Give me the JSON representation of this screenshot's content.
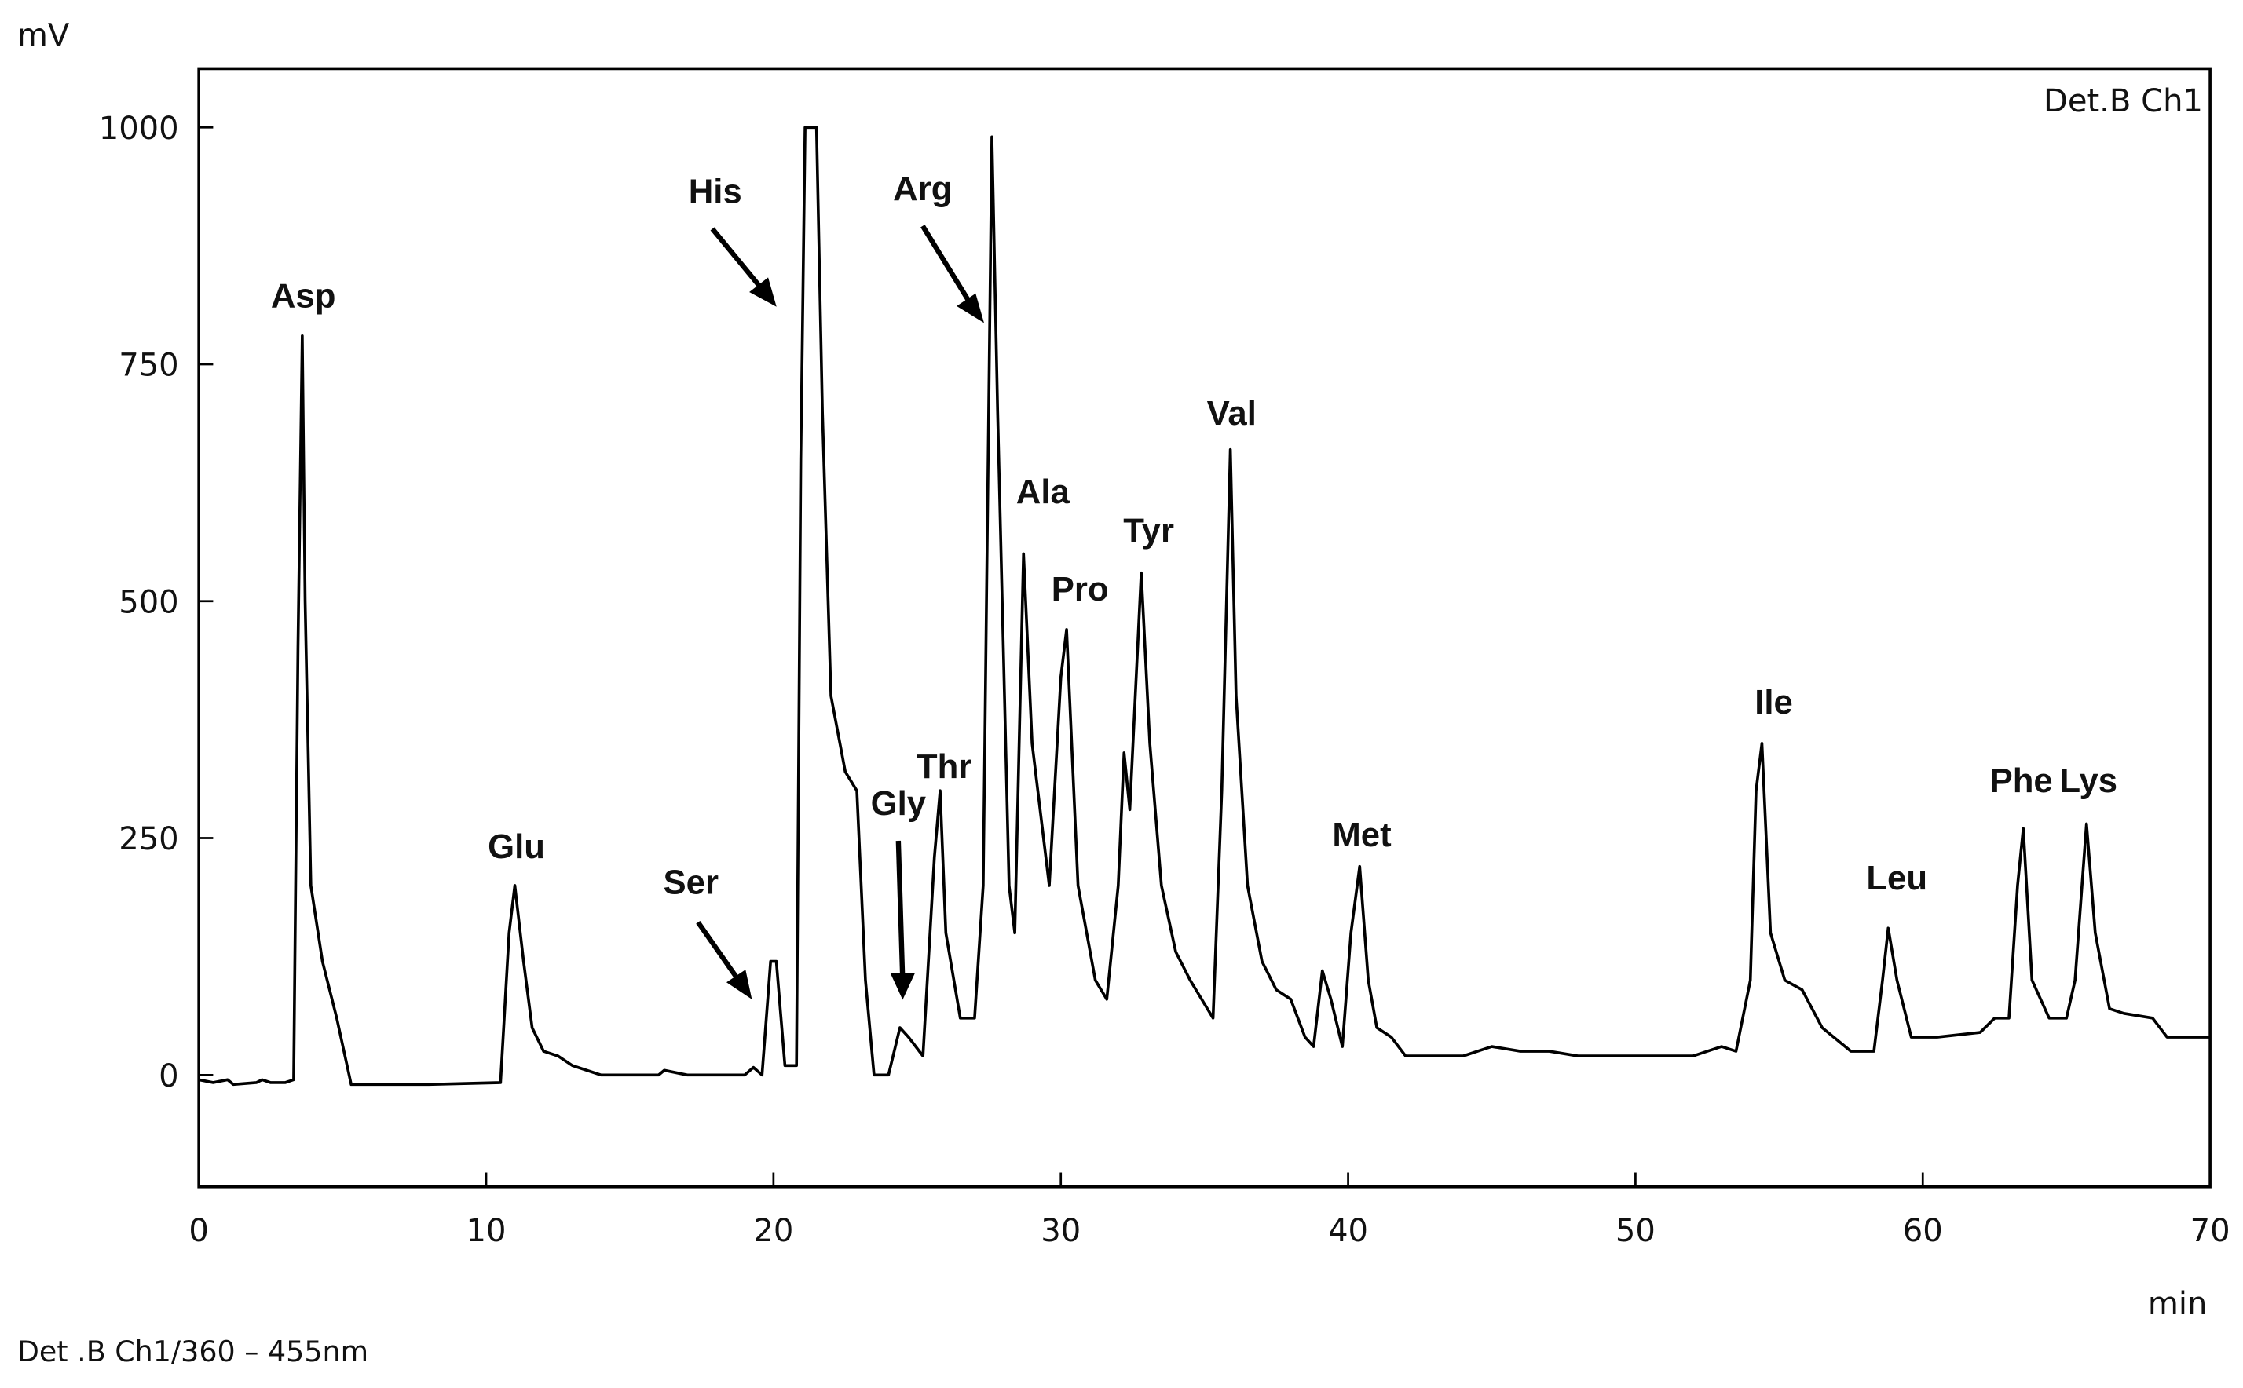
{
  "chart_data": {
    "type": "line",
    "ylabel": "mV",
    "xlabel": "min",
    "detector": "Det.B Ch1",
    "footer": "Det .B Ch1/360 – 455nm",
    "xlim": [
      0,
      70
    ],
    "ylim": [
      -118,
      1062
    ],
    "xticks": [
      0,
      10,
      20,
      30,
      40,
      50,
      60,
      70
    ],
    "yticks": [
      0,
      250,
      500,
      750,
      1000
    ],
    "color": "#000000",
    "x": [
      0,
      0.5,
      1,
      1.2,
      2,
      2.2,
      2.5,
      3,
      3.3,
      3.45,
      3.6,
      3.7,
      3.9,
      4.3,
      4.8,
      5.3,
      6,
      8,
      10.5,
      10.8,
      11,
      11.3,
      11.6,
      12,
      12.5,
      13,
      14,
      16,
      16.2,
      17,
      19,
      19.3,
      19.6,
      19.9,
      20.1,
      20.4,
      20.8,
      20.95,
      21.1,
      21.5,
      21.7,
      22,
      22.5,
      22.9,
      23.2,
      23.5,
      24,
      24.4,
      24.7,
      25.2,
      25.6,
      25.8,
      26,
      26.5,
      27,
      27.3,
      27.6,
      27.8,
      28.2,
      28.4,
      28.7,
      29,
      29.6,
      30,
      30.2,
      30.6,
      31.2,
      31.6,
      32,
      32.2,
      32.4,
      32.8,
      33.1,
      33.5,
      34,
      34.5,
      35.3,
      35.6,
      35.9,
      36.1,
      36.5,
      37,
      37.5,
      38,
      38.5,
      38.8,
      39.1,
      39.4,
      39.8,
      40.1,
      40.4,
      40.7,
      41,
      41.5,
      42,
      43,
      44,
      45,
      46,
      47,
      48,
      50,
      52,
      53,
      53.5,
      54,
      54.2,
      54.4,
      54.7,
      55.2,
      55.8,
      56.5,
      57.5,
      58.3,
      58.6,
      58.8,
      59.1,
      59.6,
      60.5,
      62,
      62.5,
      63,
      63.3,
      63.5,
      63.8,
      64.4,
      65,
      65.3,
      65.7,
      66,
      66.5,
      67,
      68,
      68.5,
      70
    ],
    "values": [
      -5,
      -8,
      -5,
      -10,
      -8,
      -5,
      -8,
      -8,
      -5,
      450,
      780,
      500,
      200,
      120,
      60,
      -10,
      -10,
      -10,
      -8,
      150,
      200,
      120,
      50,
      25,
      20,
      10,
      0,
      0,
      5,
      0,
      0,
      8,
      0,
      120,
      120,
      10,
      10,
      650,
      1000,
      1000,
      700,
      400,
      320,
      300,
      100,
      0,
      0,
      50,
      40,
      20,
      230,
      300,
      150,
      60,
      60,
      200,
      990,
      700,
      200,
      150,
      550,
      350,
      200,
      420,
      470,
      200,
      100,
      80,
      200,
      340,
      280,
      530,
      350,
      200,
      130,
      100,
      60,
      300,
      660,
      400,
      200,
      120,
      90,
      80,
      40,
      30,
      110,
      80,
      30,
      150,
      220,
      100,
      50,
      40,
      20,
      20,
      20,
      30,
      25,
      25,
      20,
      20,
      20,
      30,
      25,
      100,
      300,
      350,
      150,
      100,
      90,
      50,
      25,
      25,
      100,
      155,
      100,
      40,
      40,
      45,
      60,
      60,
      200,
      260,
      100,
      60,
      60,
      100,
      265,
      150,
      70,
      65,
      60,
      40,
      40
    ],
    "peaks": [
      "Asp",
      "Glu",
      "Ser",
      "His",
      "Gly",
      "Thr",
      "Arg",
      "Ala",
      "Pro",
      "Tyr",
      "Val",
      "Met",
      "Ile",
      "Leu",
      "Phe",
      "Lys"
    ]
  }
}
